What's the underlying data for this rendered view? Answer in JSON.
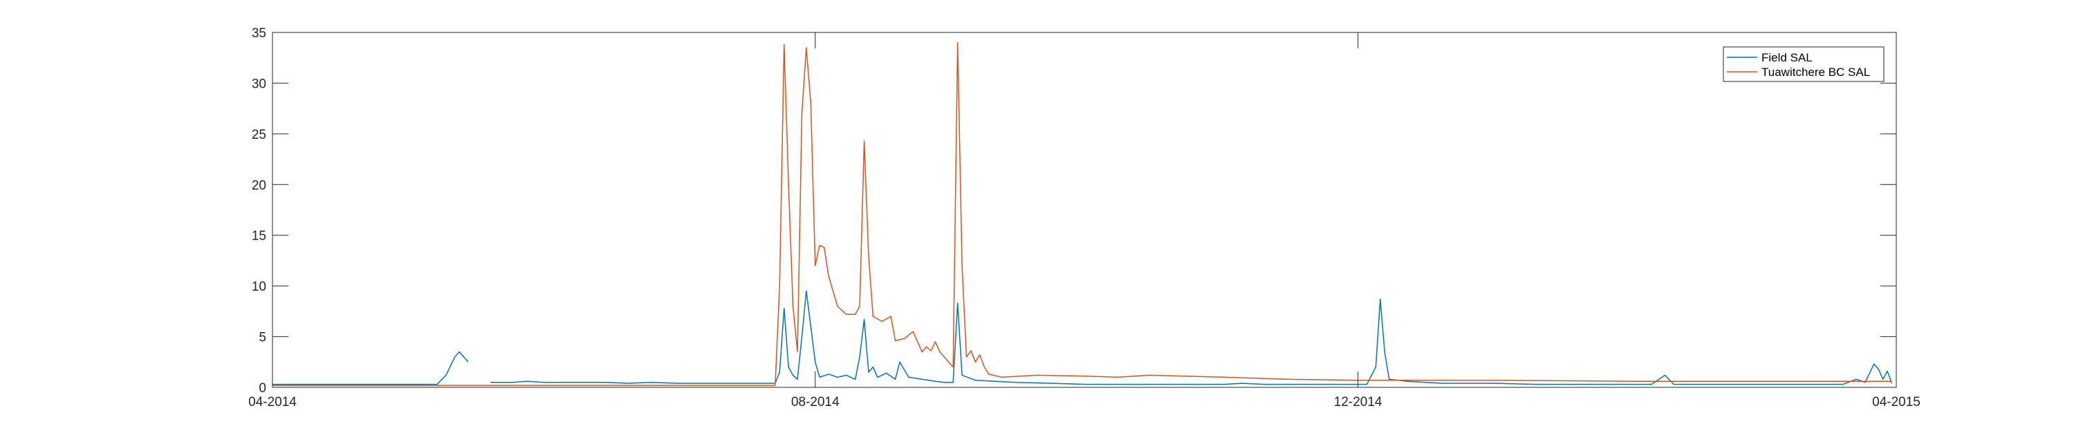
{
  "chart_data": {
    "type": "line",
    "title": "",
    "xlabel": "",
    "ylabel": "",
    "x_axis": {
      "start": "2014-04-01",
      "end": "2015-04-01",
      "ticks": [
        {
          "date": "2014-04-01",
          "label": "04-2014"
        },
        {
          "date": "2014-08-01",
          "label": "08-2014"
        },
        {
          "date": "2014-12-01",
          "label": "12-2014"
        },
        {
          "date": "2015-04-01",
          "label": "04-2015"
        }
      ]
    },
    "y_axis": {
      "range": [
        0,
        35
      ],
      "ticks": [
        {
          "value": 0,
          "label": "0"
        },
        {
          "value": 5,
          "label": "5"
        },
        {
          "value": 10,
          "label": "10"
        },
        {
          "value": 15,
          "label": "15"
        },
        {
          "value": 20,
          "label": "20"
        },
        {
          "value": 25,
          "label": "25"
        },
        {
          "value": 30,
          "label": "30"
        },
        {
          "value": 35,
          "label": "35"
        }
      ]
    },
    "grid": false,
    "legend_position": "top-right",
    "series": [
      {
        "name": "Field SAL",
        "color": "#0072BD",
        "segments": [
          [
            [
              "2014-04-01",
              0.3
            ],
            [
              "2014-04-15",
              0.3
            ],
            [
              "2014-05-01",
              0.3
            ],
            [
              "2014-05-08",
              0.3
            ],
            [
              "2014-05-10",
              1.2
            ],
            [
              "2014-05-12",
              3.0
            ],
            [
              "2014-05-13",
              3.5
            ],
            [
              "2014-05-15",
              2.5
            ]
          ],
          [
            [
              "2014-05-20",
              0.5
            ],
            [
              "2014-05-25",
              0.5
            ],
            [
              "2014-05-28",
              0.6
            ],
            [
              "2014-06-01",
              0.5
            ],
            [
              "2014-06-15",
              0.5
            ],
            [
              "2014-06-20",
              0.4
            ],
            [
              "2014-06-25",
              0.5
            ],
            [
              "2014-07-01",
              0.4
            ],
            [
              "2014-07-10",
              0.4
            ],
            [
              "2014-07-23",
              0.4
            ],
            [
              "2014-07-24",
              1.5
            ],
            [
              "2014-07-25",
              7.8
            ],
            [
              "2014-07-26",
              2.0
            ],
            [
              "2014-07-27",
              1.2
            ],
            [
              "2014-07-28",
              0.8
            ],
            [
              "2014-07-29",
              5.0
            ],
            [
              "2014-07-30",
              9.5
            ],
            [
              "2014-07-31",
              6.0
            ],
            [
              "2014-08-01",
              2.5
            ],
            [
              "2014-08-02",
              1.0
            ],
            [
              "2014-08-04",
              1.3
            ],
            [
              "2014-08-06",
              1.0
            ],
            [
              "2014-08-08",
              1.2
            ],
            [
              "2014-08-10",
              0.8
            ],
            [
              "2014-08-11",
              3.0
            ],
            [
              "2014-08-12",
              6.7
            ],
            [
              "2014-08-13",
              1.5
            ],
            [
              "2014-08-14",
              2.0
            ],
            [
              "2014-08-15",
              1.0
            ],
            [
              "2014-08-17",
              1.4
            ],
            [
              "2014-08-19",
              0.8
            ],
            [
              "2014-08-20",
              2.5
            ],
            [
              "2014-08-22",
              1.0
            ],
            [
              "2014-08-25",
              0.8
            ],
            [
              "2014-08-28",
              0.6
            ],
            [
              "2014-08-30",
              0.5
            ],
            [
              "2014-09-01",
              0.5
            ],
            [
              "2014-09-02",
              8.3
            ],
            [
              "2014-09-03",
              1.2
            ],
            [
              "2014-09-06",
              0.7
            ],
            [
              "2014-09-15",
              0.5
            ],
            [
              "2014-10-01",
              0.3
            ],
            [
              "2014-10-15",
              0.3
            ],
            [
              "2014-11-01",
              0.3
            ],
            [
              "2014-11-05",
              0.4
            ],
            [
              "2014-11-10",
              0.3
            ],
            [
              "2014-11-25",
              0.3
            ],
            [
              "2014-12-01",
              0.3
            ],
            [
              "2014-12-03",
              0.3
            ],
            [
              "2014-12-05",
              2.0
            ],
            [
              "2014-12-06",
              8.7
            ],
            [
              "2014-12-07",
              3.5
            ],
            [
              "2014-12-08",
              0.8
            ],
            [
              "2014-12-12",
              0.6
            ],
            [
              "2014-12-20",
              0.4
            ],
            [
              "2015-01-01",
              0.4
            ],
            [
              "2015-01-10",
              0.3
            ],
            [
              "2015-01-25",
              0.3
            ],
            [
              "2015-02-05",
              0.3
            ],
            [
              "2015-02-08",
              1.2
            ],
            [
              "2015-02-10",
              0.3
            ],
            [
              "2015-02-25",
              0.3
            ],
            [
              "2015-03-10",
              0.3
            ],
            [
              "2015-03-20",
              0.3
            ],
            [
              "2015-03-23",
              0.8
            ],
            [
              "2015-03-25",
              0.5
            ],
            [
              "2015-03-27",
              2.3
            ],
            [
              "2015-03-28",
              1.8
            ],
            [
              "2015-03-29",
              0.8
            ],
            [
              "2015-03-30",
              1.6
            ],
            [
              "2015-03-31",
              0.4
            ]
          ]
        ]
      },
      {
        "name": "Tuawitchere BC SAL",
        "color": "#D95319",
        "segments": [
          [
            [
              "2014-04-01",
              0.2
            ],
            [
              "2014-05-01",
              0.2
            ],
            [
              "2014-06-01",
              0.2
            ],
            [
              "2014-07-01",
              0.2
            ],
            [
              "2014-07-23",
              0.2
            ],
            [
              "2014-07-24",
              10.0
            ],
            [
              "2014-07-25",
              33.8
            ],
            [
              "2014-07-26",
              20.0
            ],
            [
              "2014-07-27",
              8.0
            ],
            [
              "2014-07-28",
              3.5
            ],
            [
              "2014-07-29",
              27.0
            ],
            [
              "2014-07-30",
              33.5
            ],
            [
              "2014-07-31",
              28.0
            ],
            [
              "2014-08-01",
              12.0
            ],
            [
              "2014-08-02",
              14.0
            ],
            [
              "2014-08-03",
              13.8
            ],
            [
              "2014-08-04",
              11.0
            ],
            [
              "2014-08-06",
              8.0
            ],
            [
              "2014-08-08",
              7.2
            ],
            [
              "2014-08-10",
              7.2
            ],
            [
              "2014-08-11",
              8.0
            ],
            [
              "2014-08-12",
              24.3
            ],
            [
              "2014-08-13",
              13.0
            ],
            [
              "2014-08-14",
              7.0
            ],
            [
              "2014-08-16",
              6.5
            ],
            [
              "2014-08-18",
              7.0
            ],
            [
              "2014-08-19",
              4.6
            ],
            [
              "2014-08-21",
              4.8
            ],
            [
              "2014-08-23",
              5.5
            ],
            [
              "2014-08-24",
              4.5
            ],
            [
              "2014-08-25",
              3.5
            ],
            [
              "2014-08-26",
              4.0
            ],
            [
              "2014-08-27",
              3.6
            ],
            [
              "2014-08-28",
              4.5
            ],
            [
              "2014-08-29",
              3.5
            ],
            [
              "2014-08-30",
              3.0
            ],
            [
              "2014-08-31",
              2.5
            ],
            [
              "2014-09-01",
              2.0
            ],
            [
              "2014-09-02",
              34.0
            ],
            [
              "2014-09-03",
              12.0
            ],
            [
              "2014-09-04",
              3.0
            ],
            [
              "2014-09-05",
              3.6
            ],
            [
              "2014-09-06",
              2.5
            ],
            [
              "2014-09-07",
              3.2
            ],
            [
              "2014-09-08",
              2.0
            ],
            [
              "2014-09-09",
              1.3
            ],
            [
              "2014-09-12",
              1.0
            ],
            [
              "2014-09-20",
              1.2
            ],
            [
              "2014-10-01",
              1.1
            ],
            [
              "2014-10-08",
              1.0
            ],
            [
              "2014-10-15",
              1.2
            ],
            [
              "2014-11-01",
              1.0
            ],
            [
              "2014-11-15",
              0.8
            ],
            [
              "2014-12-01",
              0.7
            ],
            [
              "2014-12-15",
              0.7
            ],
            [
              "2015-01-01",
              0.7
            ],
            [
              "2015-02-01",
              0.6
            ],
            [
              "2015-03-01",
              0.6
            ],
            [
              "2015-03-31",
              0.6
            ]
          ]
        ]
      }
    ]
  }
}
